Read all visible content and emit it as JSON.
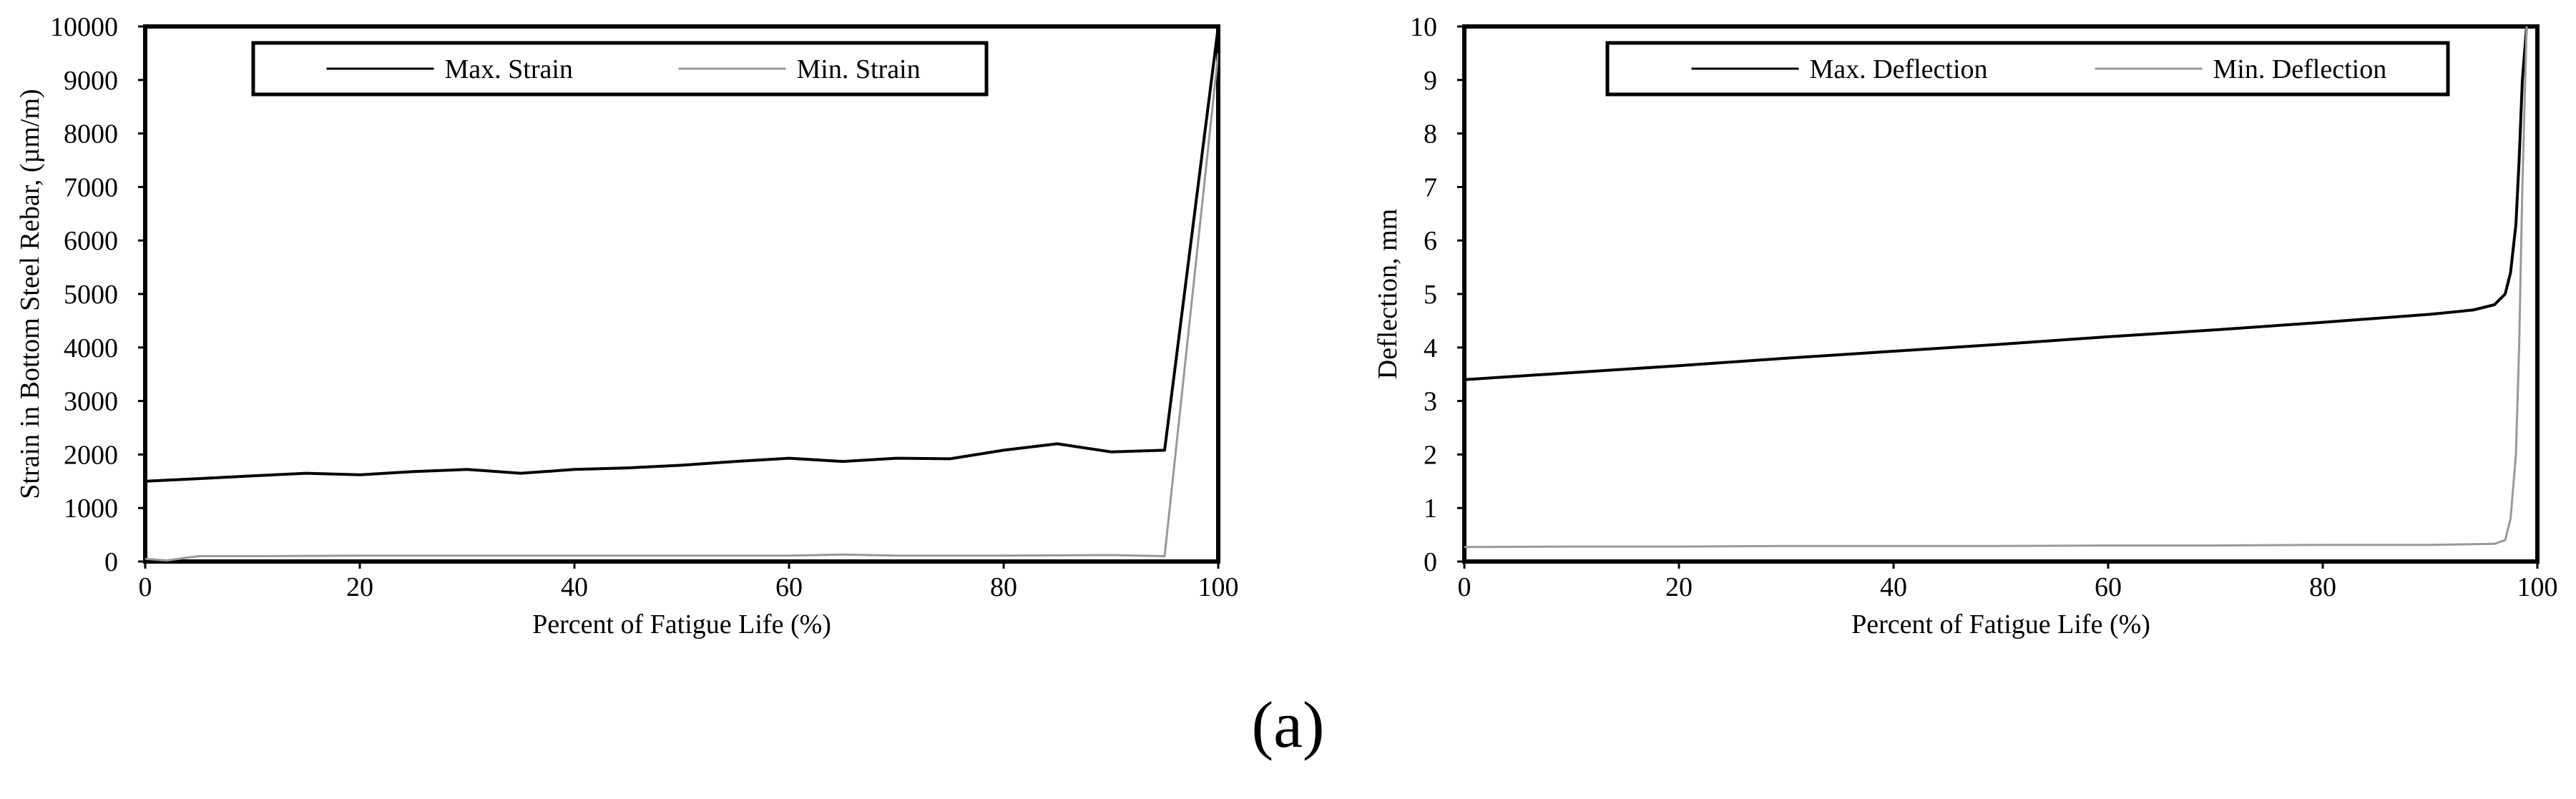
{
  "chart_data": [
    {
      "type": "line",
      "xlabel": "Percent of Fatigue Life (%)",
      "ylabel": "Strain in Bottom Steel Rebar, (µm/m)",
      "xlim": [
        0,
        100
      ],
      "ylim": [
        0,
        10000
      ],
      "xticks": [
        0,
        20,
        40,
        60,
        80,
        100
      ],
      "yticks": [
        0,
        1000,
        2000,
        3000,
        4000,
        5000,
        6000,
        7000,
        8000,
        9000,
        10000
      ],
      "grid": false,
      "legend_position": "top-center",
      "series": [
        {
          "name": "Max. Strain",
          "color": "#000000",
          "x": [
            0,
            5,
            10,
            15,
            20,
            25,
            30,
            35,
            40,
            45,
            50,
            55,
            60,
            65,
            70,
            75,
            80,
            85,
            90,
            95,
            100
          ],
          "y": [
            1500,
            1550,
            1600,
            1650,
            1620,
            1680,
            1720,
            1650,
            1720,
            1750,
            1800,
            1870,
            1930,
            1870,
            1930,
            1920,
            2080,
            2200,
            2050,
            2080,
            10000
          ]
        },
        {
          "name": "Min. Strain",
          "color": "#999999",
          "x": [
            0,
            2,
            5,
            10,
            20,
            30,
            40,
            50,
            60,
            65,
            70,
            80,
            90,
            95,
            100
          ],
          "y": [
            50,
            20,
            100,
            100,
            110,
            110,
            110,
            110,
            110,
            130,
            110,
            110,
            120,
            100,
            9500
          ]
        }
      ]
    },
    {
      "type": "line",
      "xlabel": "Percent of Fatigue Life (%)",
      "ylabel": "Deflection, mm",
      "xlim": [
        0,
        100
      ],
      "ylim": [
        0,
        10
      ],
      "xticks": [
        0,
        20,
        40,
        60,
        80,
        100
      ],
      "yticks": [
        0,
        1,
        2,
        3,
        4,
        5,
        6,
        7,
        8,
        9,
        10
      ],
      "grid": false,
      "legend_position": "top-center",
      "series": [
        {
          "name": "Max. Deflection",
          "color": "#000000",
          "x": [
            0,
            10,
            20,
            30,
            40,
            50,
            60,
            70,
            80,
            90,
            94,
            96,
            97,
            97.5,
            98,
            98.3,
            98.6,
            99
          ],
          "y": [
            3.4,
            3.53,
            3.66,
            3.8,
            3.93,
            4.06,
            4.2,
            4.33,
            4.47,
            4.62,
            4.7,
            4.8,
            5.0,
            5.4,
            6.3,
            7.5,
            9.0,
            10.0
          ]
        },
        {
          "name": "Min. Deflection",
          "color": "#999999",
          "x": [
            0,
            10,
            20,
            30,
            40,
            50,
            60,
            70,
            80,
            90,
            96,
            97,
            97.5,
            98,
            98.3,
            98.6,
            99
          ],
          "y": [
            0.27,
            0.28,
            0.28,
            0.29,
            0.29,
            0.29,
            0.3,
            0.3,
            0.31,
            0.31,
            0.33,
            0.4,
            0.8,
            2.0,
            4.0,
            7.0,
            10.0
          ]
        }
      ]
    }
  ],
  "figure_label": "(a)"
}
